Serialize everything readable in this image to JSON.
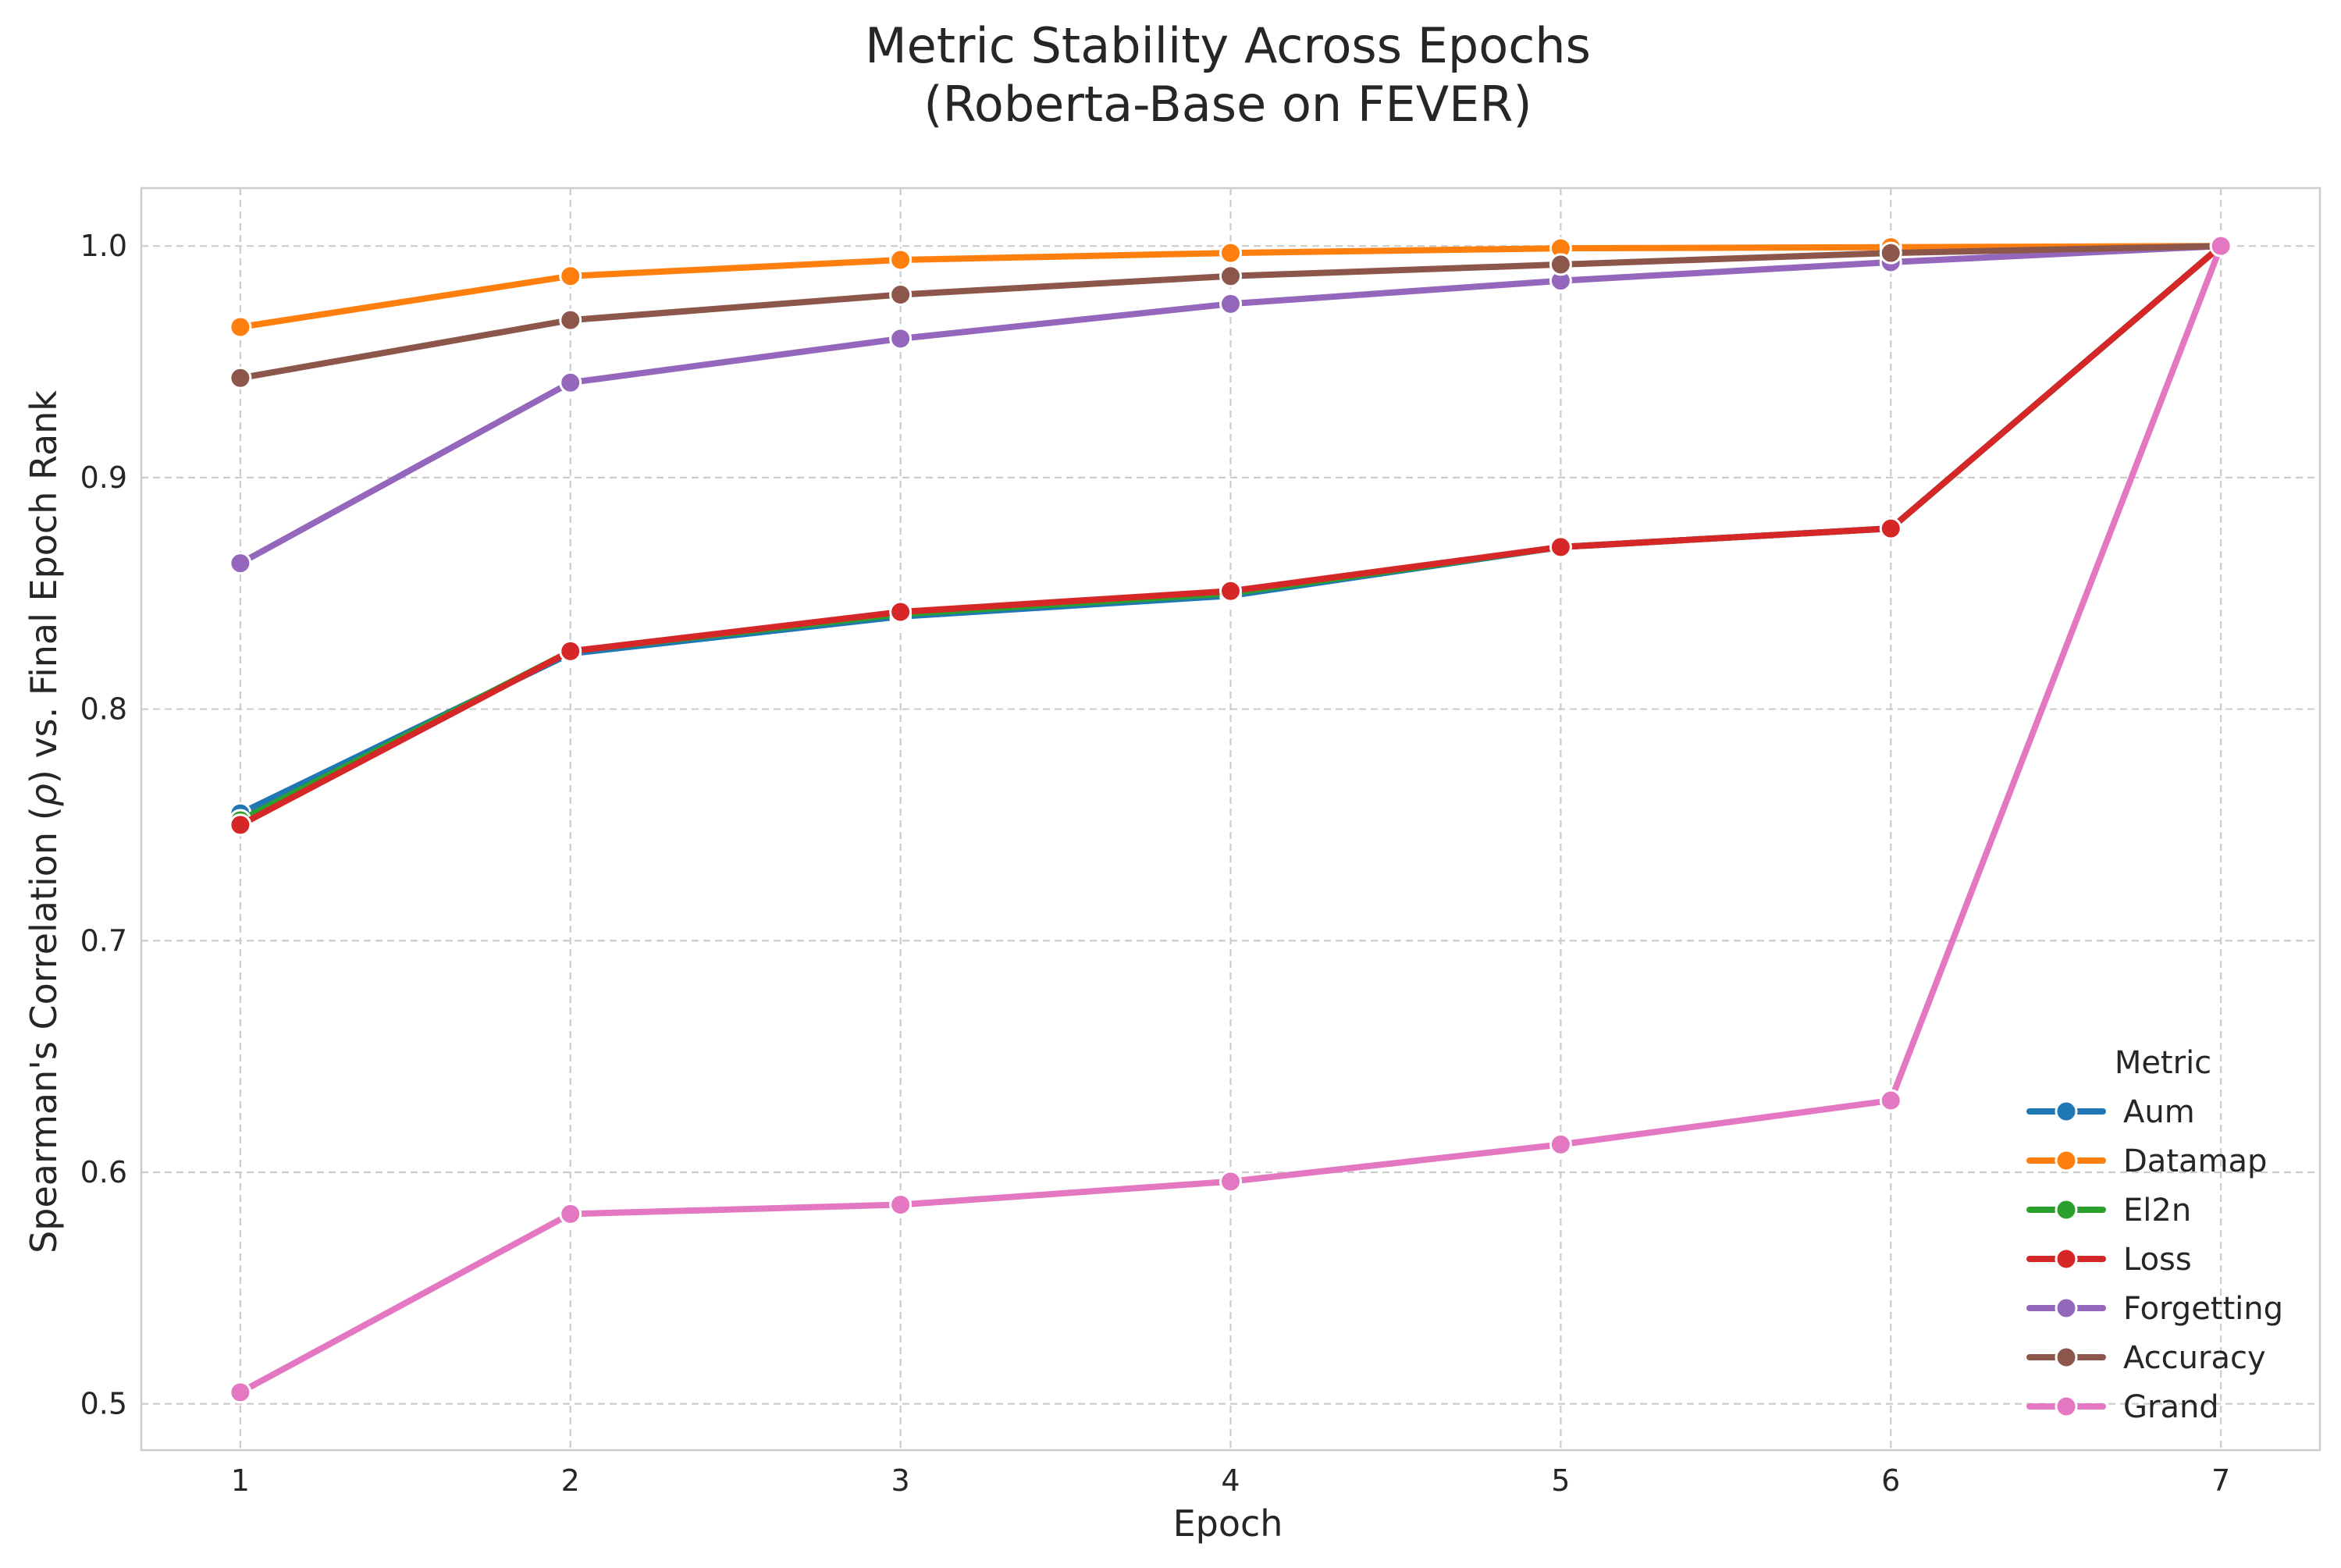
{
  "chart_data": {
    "type": "line",
    "title": "Metric Stability Across Epochs",
    "subtitle": "(Roberta-Base on FEVER)",
    "xlabel": "Epoch",
    "ylabel_prefix": "Spearman's Correlation (",
    "ylabel_symbol": "ρ",
    "ylabel_suffix": ") vs. Final Epoch Rank",
    "x": [
      1,
      2,
      3,
      4,
      5,
      6,
      7
    ],
    "xlim": [
      0.7,
      7.3
    ],
    "ylim": [
      0.48,
      1.025
    ],
    "yticks": [
      0.5,
      0.6,
      0.7,
      0.8,
      0.9,
      1.0
    ],
    "ytick_labels": [
      "0.5",
      "0.6",
      "0.7",
      "0.8",
      "0.9",
      "1.0"
    ],
    "xtick_labels": [
      "1",
      "2",
      "3",
      "4",
      "5",
      "6",
      "7"
    ],
    "grid": true,
    "legend": {
      "title": "Metric",
      "placement": "lower-right"
    },
    "series": [
      {
        "name": "Aum",
        "color": "#1f77b4",
        "values": [
          0.755,
          0.824,
          0.84,
          0.849,
          0.87,
          0.878,
          1.0
        ]
      },
      {
        "name": "Datamap",
        "color": "#ff7f0e",
        "values": [
          0.965,
          0.987,
          0.994,
          0.997,
          0.999,
          0.9995,
          1.0
        ]
      },
      {
        "name": "El2n",
        "color": "#2ca02c",
        "values": [
          0.752,
          0.825,
          0.841,
          0.85,
          0.87,
          0.878,
          1.0
        ]
      },
      {
        "name": "Loss",
        "color": "#d62728",
        "values": [
          0.75,
          0.825,
          0.842,
          0.851,
          0.87,
          0.878,
          1.0
        ]
      },
      {
        "name": "Forgetting",
        "color": "#9467bd",
        "values": [
          0.863,
          0.941,
          0.96,
          0.975,
          0.985,
          0.993,
          1.0
        ]
      },
      {
        "name": "Accuracy",
        "color": "#8c564b",
        "values": [
          0.943,
          0.968,
          0.979,
          0.987,
          0.992,
          0.997,
          1.0
        ]
      },
      {
        "name": "Grand",
        "color": "#e377c2",
        "values": [
          0.505,
          0.582,
          0.586,
          0.596,
          0.612,
          0.631,
          1.0
        ]
      }
    ]
  }
}
